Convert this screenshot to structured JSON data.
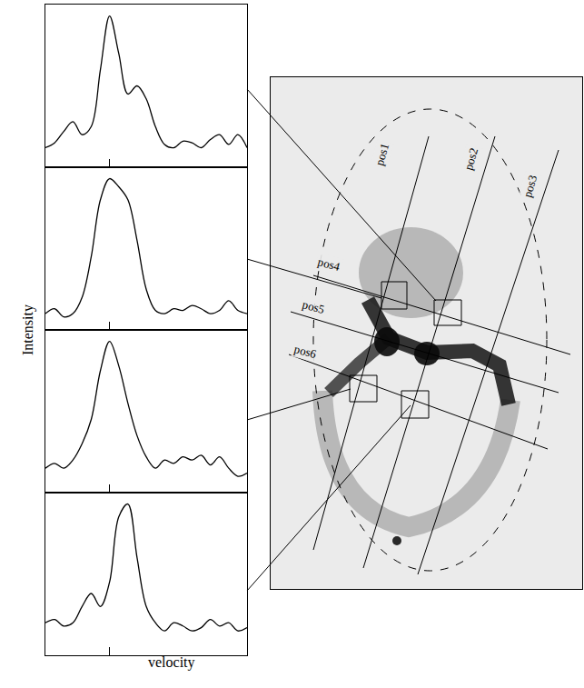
{
  "chart_data": {
    "type": "line",
    "x_label": "velocity",
    "y_label": "Intensity",
    "x": [
      -7,
      -6,
      -5,
      -4,
      -3,
      -2,
      -1,
      0,
      1,
      2,
      3,
      4,
      5,
      6,
      7,
      8,
      9,
      10,
      11,
      12,
      13,
      14,
      15
    ],
    "xlim": [
      -7,
      15
    ],
    "xticks": [
      0
    ],
    "ylim": [
      0,
      1
    ],
    "tick_labels": false,
    "color": "#000000",
    "series": [
      {
        "values": [
          0.12,
          0.15,
          0.22,
          0.28,
          0.2,
          0.25,
          0.6,
          0.93,
          0.7,
          0.45,
          0.5,
          0.42,
          0.25,
          0.14,
          0.12,
          0.16,
          0.15,
          0.12,
          0.17,
          0.2,
          0.14,
          0.2,
          0.12
        ]
      },
      {
        "values": [
          0.1,
          0.13,
          0.08,
          0.1,
          0.2,
          0.45,
          0.8,
          0.93,
          0.88,
          0.8,
          0.55,
          0.25,
          0.12,
          0.1,
          0.13,
          0.12,
          0.15,
          0.13,
          0.1,
          0.12,
          0.18,
          0.12,
          0.1
        ]
      },
      {
        "values": [
          0.15,
          0.18,
          0.15,
          0.2,
          0.3,
          0.45,
          0.75,
          0.93,
          0.78,
          0.55,
          0.35,
          0.22,
          0.15,
          0.2,
          0.18,
          0.22,
          0.2,
          0.23,
          0.17,
          0.22,
          0.15,
          0.1,
          0.12
        ]
      },
      {
        "values": [
          0.2,
          0.22,
          0.18,
          0.2,
          0.3,
          0.38,
          0.3,
          0.45,
          0.85,
          0.93,
          0.6,
          0.3,
          0.2,
          0.15,
          0.2,
          0.18,
          0.15,
          0.17,
          0.22,
          0.18,
          0.2,
          0.15,
          0.17
        ]
      }
    ],
    "annotations": [
      "pos1",
      "pos2",
      "pos3",
      "pos4",
      "pos5",
      "pos6"
    ]
  }
}
